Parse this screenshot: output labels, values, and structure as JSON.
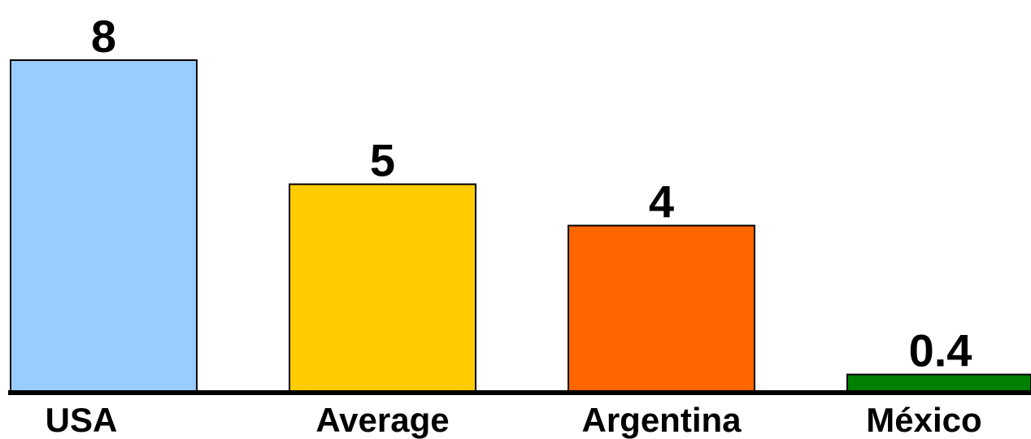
{
  "chart_data": {
    "type": "bar",
    "categories": [
      "USA",
      "Average",
      "Argentina",
      "México"
    ],
    "values": [
      8,
      5,
      4,
      0.4
    ],
    "value_labels": [
      "8",
      "5",
      "4",
      "0.4"
    ],
    "colors": [
      "#99CCFF",
      "#FFCC00",
      "#FF6600",
      "#008000"
    ],
    "title": "",
    "xlabel": "",
    "ylabel": "",
    "ylim": [
      0,
      8
    ],
    "grid": false,
    "legend": "none"
  }
}
